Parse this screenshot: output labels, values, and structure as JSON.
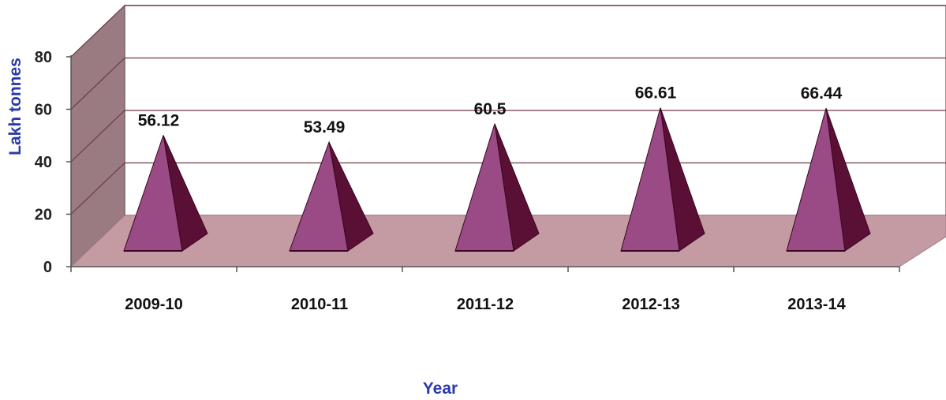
{
  "chart_data": {
    "type": "bar",
    "style": "3d-pyramid",
    "categories": [
      "2009-10",
      "2010-11",
      "2011-12",
      "2012-13",
      "2013-14"
    ],
    "values": [
      56.12,
      53.49,
      60.5,
      66.61,
      66.44
    ],
    "data_labels": [
      "56.12",
      "53.49",
      "60.5",
      "66.61",
      "66.44"
    ],
    "title": "",
    "xlabel": "Year",
    "ylabel": "Lakh tonnes",
    "ylim": [
      0,
      80
    ],
    "yticks": [
      "0",
      "20",
      "40",
      "60",
      "80"
    ],
    "grid": true,
    "legend": "none",
    "colors": {
      "pyramid_front": "#9a4a84",
      "pyramid_side": "#5a0f35",
      "pyramid_edge": "#3a0822",
      "wall": "#ffffff",
      "side_wall": "#9a7b82",
      "floor": "#c49aa3",
      "gridline": "#6a3a4a",
      "axis_title": "#2a3aa8"
    }
  }
}
